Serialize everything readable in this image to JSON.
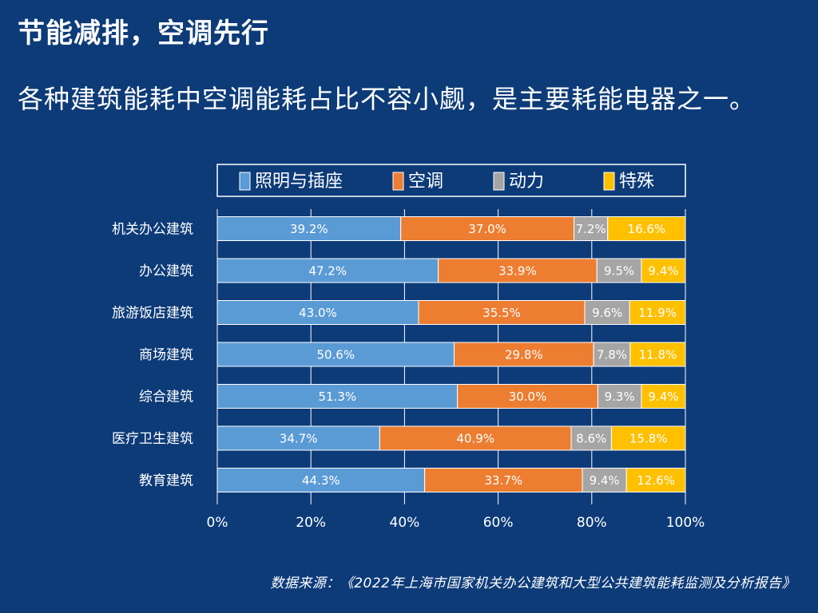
{
  "header": {
    "title": "节能减排，空调先行",
    "subtitle": "各种建筑能耗中空调能耗占比不容小觑，是主要耗能电器之一。"
  },
  "source": "数据来源：《2022年上海市国家机关办公建筑和大型公共建筑能耗监测及分析报告》",
  "chart_data": {
    "type": "bar",
    "orientation": "horizontal",
    "stacked": true,
    "categories": [
      "机关办公建筑",
      "办公建筑",
      "旅游饭店建筑",
      "商场建筑",
      "综合建筑",
      "医疗卫生建筑",
      "教育建筑"
    ],
    "series": [
      {
        "name": "照明与插座",
        "color": "#5b9bd5",
        "values": [
          39.2,
          47.2,
          43.0,
          50.6,
          51.3,
          34.7,
          44.3
        ],
        "labels": [
          "39.2%",
          "47.2%",
          "43.0%",
          "50.6%",
          "51.3%",
          "34.7%",
          "44.3%"
        ]
      },
      {
        "name": "空调",
        "color": "#ed7d31",
        "values": [
          37.0,
          33.9,
          35.5,
          29.8,
          30.0,
          40.9,
          33.7
        ],
        "labels": [
          "37.0%",
          "33.9%",
          "35.5%",
          "29.8%",
          "30.0%",
          "40.9%",
          "33.7%"
        ]
      },
      {
        "name": "动力",
        "color": "#a5a5a5",
        "values": [
          7.2,
          9.5,
          9.6,
          7.8,
          9.3,
          8.6,
          9.4
        ],
        "labels": [
          "7.2%",
          "9.5%",
          "9.6%",
          "7.8%",
          "9.3%",
          "8.6%",
          "9.4%"
        ]
      },
      {
        "name": "特殊",
        "color": "#ffc000",
        "values": [
          16.6,
          9.4,
          11.9,
          11.8,
          9.4,
          15.8,
          12.6
        ],
        "labels": [
          "16.6%",
          "9.4%",
          "11.9%",
          "11.8%",
          "9.4%",
          "15.8%",
          "12.6%"
        ]
      }
    ],
    "xlim": [
      0,
      100
    ],
    "xticks": [
      0,
      20,
      40,
      60,
      80,
      100
    ],
    "xtick_labels": [
      "0%",
      "20%",
      "40%",
      "60%",
      "80%",
      "100%"
    ],
    "grid": true,
    "legend_position": "top",
    "background": "#0d3b78",
    "text_color": "#ffffff"
  }
}
